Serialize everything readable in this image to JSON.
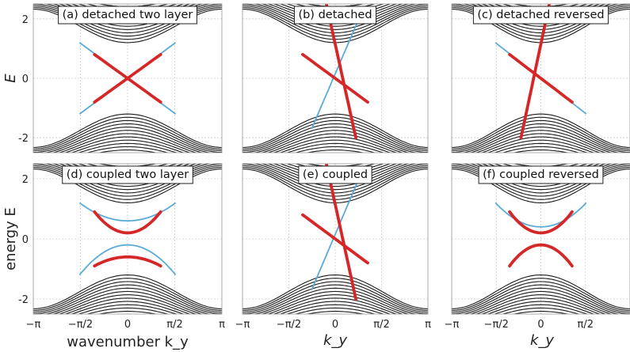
{
  "chart_data": {
    "type": "line",
    "panel_titles": [
      "(a) detached two layer",
      "(b) detached",
      "(c) detached reversed",
      "(d) coupled two layer",
      "(e) coupled",
      "(f) coupled reversed"
    ],
    "ylabel_top": "E",
    "ylabel_bottom": "energy E",
    "xlabel_left": "wavenumber k_y",
    "xlabel_other": "k_y",
    "ylim": [
      -2.5,
      2.5
    ],
    "xlim": [
      -3.14159,
      3.14159
    ],
    "yticks": [
      -2,
      0,
      2
    ],
    "yticklabels": [
      "-2",
      "0",
      "2"
    ],
    "xticks": [
      -3.14159,
      -1.5708,
      0,
      1.5708,
      3.14159
    ],
    "xticklabels_left": [
      "−π",
      "−π/2",
      "0",
      "π/2",
      "π"
    ],
    "xticklabels_mid": [
      "−π",
      "−π/2",
      "0",
      "π/2",
      "π"
    ],
    "xticklabels_right": [
      "−π",
      "−π/2",
      "0",
      "π/2"
    ],
    "grid": true,
    "colors": {
      "bulk": "#1a1a1a",
      "edge_blue": "#5aaad8",
      "edge_red": "#d62728",
      "grid": "#cccccc"
    },
    "bulk": {
      "upper_min": 1.2,
      "lower_max": -1.2,
      "upper_max_center": 2.3,
      "lower_min_center": -2.2
    },
    "panels": [
      {
        "label": "(a)",
        "red": [
          {
            "x": [
              -1.1,
              1.1
            ],
            "y": [
              0.8,
              -0.8
            ]
          },
          {
            "x": [
              -1.1,
              1.1
            ],
            "y": [
              -0.8,
              0.8
            ]
          }
        ],
        "blue": [
          {
            "x": [
              -1.6,
              1.6
            ],
            "y": [
              1.2,
              -1.2
            ]
          },
          {
            "x": [
              -1.6,
              1.6
            ],
            "y": [
              -1.2,
              1.2
            ]
          }
        ]
      },
      {
        "label": "(b)",
        "red": [
          {
            "x": [
              -1.1,
              1.1
            ],
            "y": [
              0.8,
              -0.8
            ]
          },
          {
            "x": [
              -0.3,
              0.7
            ],
            "y": [
              2.5,
              -2.0
            ]
          }
        ],
        "blue": [
          {
            "x": [
              -0.8,
              0.8
            ],
            "y": [
              -1.7,
              2.0
            ]
          }
        ]
      },
      {
        "label": "(c)",
        "red": [
          {
            "x": [
              -1.1,
              1.1
            ],
            "y": [
              0.8,
              -0.8
            ]
          },
          {
            "x": [
              -0.7,
              0.3
            ],
            "y": [
              -2.0,
              2.5
            ]
          }
        ],
        "blue": [
          {
            "x": [
              -1.6,
              1.6
            ],
            "y": [
              1.2,
              -1.2
            ]
          }
        ]
      },
      {
        "label": "(d)",
        "red": [
          {
            "x": [
              -1.1,
              0,
              1.1
            ],
            "y": [
              0.9,
              0.2,
              0.9
            ]
          },
          {
            "x": [
              -1.1,
              0,
              1.1
            ],
            "y": [
              -0.9,
              -0.6,
              -0.9
            ]
          }
        ],
        "blue": [
          {
            "x": [
              -1.6,
              0,
              1.6
            ],
            "y": [
              1.2,
              0.6,
              1.2
            ]
          },
          {
            "x": [
              -1.6,
              0,
              1.6
            ],
            "y": [
              -1.2,
              -0.2,
              -1.2
            ]
          }
        ]
      },
      {
        "label": "(e)",
        "red": [
          {
            "x": [
              -1.1,
              1.1
            ],
            "y": [
              0.8,
              -0.8
            ]
          },
          {
            "x": [
              -0.3,
              0.7
            ],
            "y": [
              2.5,
              -2.0
            ]
          }
        ],
        "blue": [
          {
            "x": [
              -0.8,
              0.8
            ],
            "y": [
              -1.7,
              2.0
            ]
          }
        ]
      },
      {
        "label": "(f)",
        "red": [
          {
            "x": [
              -1.1,
              0,
              1.1
            ],
            "y": [
              0.9,
              0.2,
              0.9
            ]
          },
          {
            "x": [
              -1.1,
              0,
              1.1
            ],
            "y": [
              -0.9,
              -0.2,
              -0.9
            ]
          }
        ],
        "blue": [
          {
            "x": [
              -1.6,
              0,
              1.6
            ],
            "y": [
              1.2,
              0.4,
              1.2
            ]
          }
        ]
      }
    ]
  }
}
